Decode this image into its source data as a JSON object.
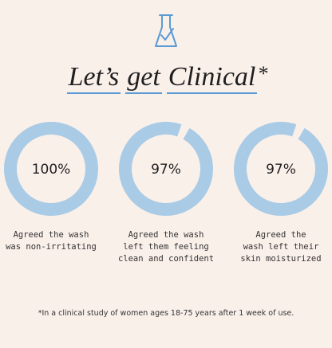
{
  "title": {
    "words": [
      "Let’s",
      "get",
      "Clinical"
    ],
    "mark": "*"
  },
  "stats": [
    {
      "value": 100,
      "label": "100%",
      "caption": [
        "Agreed the wash",
        "was non-irritating"
      ]
    },
    {
      "value": 97,
      "label": "97%",
      "caption": [
        "Agreed the wash",
        "left them feeling",
        "clean and confident"
      ]
    },
    {
      "value": 97,
      "label": "97%",
      "caption": [
        "Agreed the",
        "wash left their",
        "skin moisturized"
      ]
    }
  ],
  "footnote": "*In a clinical study of women ages 18-75 years after 1 week of use."
}
